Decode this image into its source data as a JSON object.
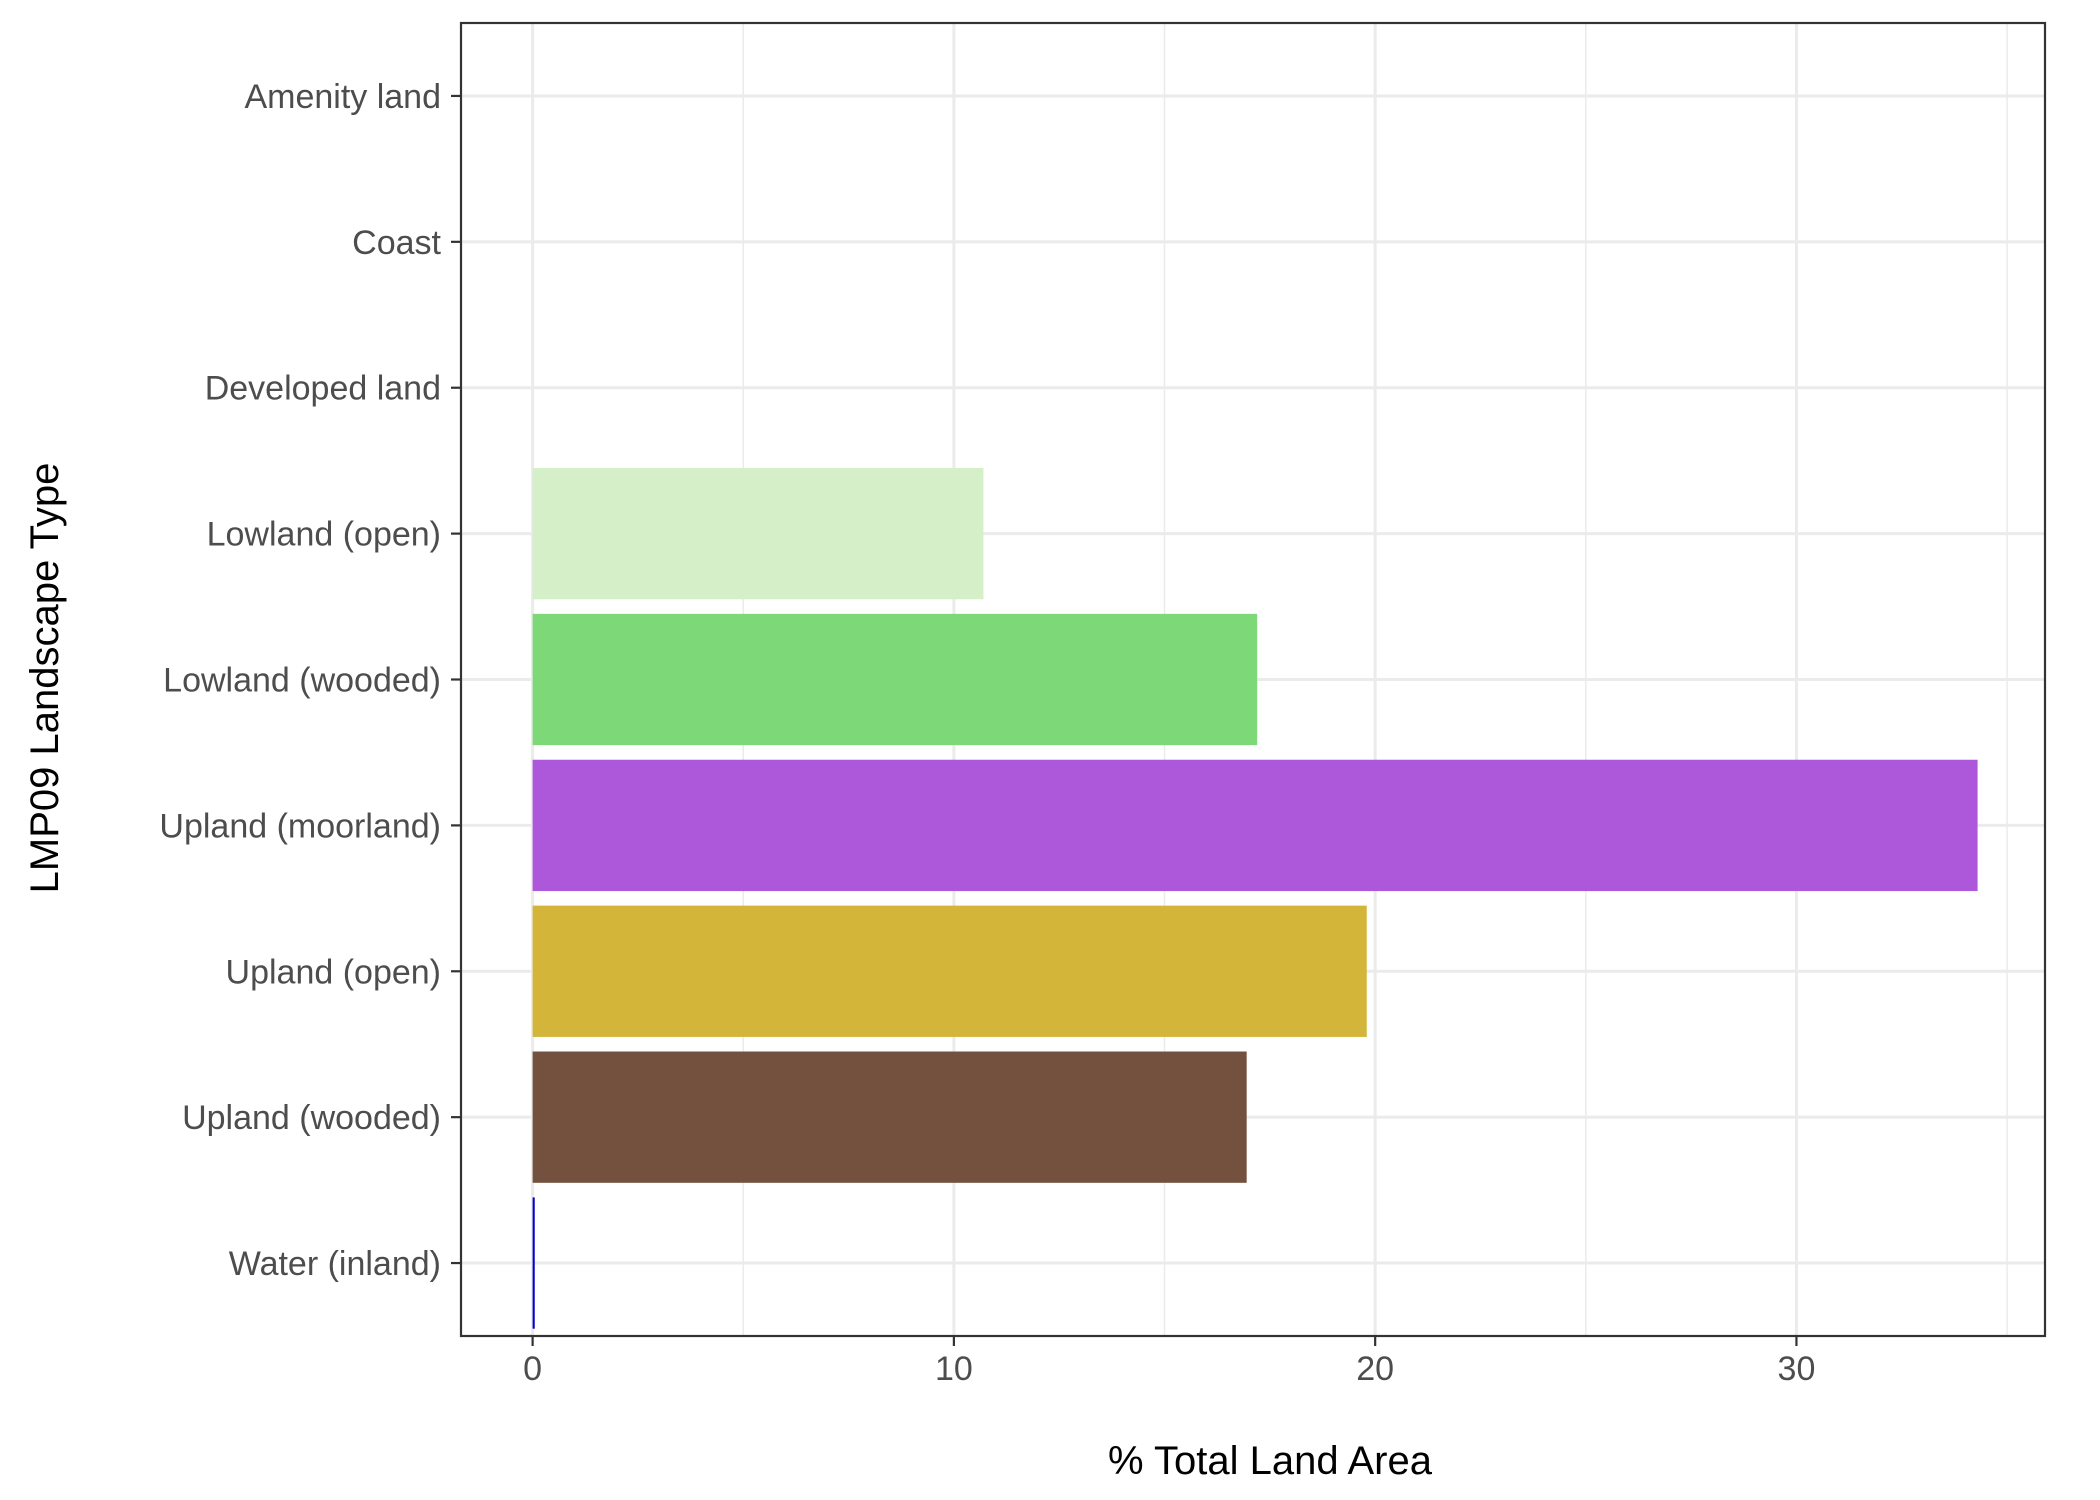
{
  "chart_data": {
    "type": "bar",
    "orientation": "horizontal",
    "xlabel": "% Total Land Area",
    "ylabel": "LMP09 Landscape Type",
    "xlim": [
      -1.7,
      35.9
    ],
    "x_ticks": [
      0,
      10,
      20,
      30
    ],
    "x_tick_labels": [
      "0",
      "10",
      "20",
      "30"
    ],
    "grid": true,
    "legend": "none",
    "categories": [
      "Amenity land",
      "Coast",
      "Developed land",
      "Lowland (open)",
      "Lowland (wooded)",
      "Upland (moorland)",
      "Upland (open)",
      "Upland (wooded)",
      "Water (inland)"
    ],
    "values": [
      0,
      0,
      0,
      10.7,
      17.2,
      34.3,
      19.8,
      16.95,
      0.05
    ],
    "colors": [
      "#ffffff",
      "#ffffff",
      "#ffffff",
      "#d5efc8",
      "#7dd977",
      "#ad58da",
      "#d3b53a",
      "#73513e",
      "#0000cc"
    ]
  }
}
